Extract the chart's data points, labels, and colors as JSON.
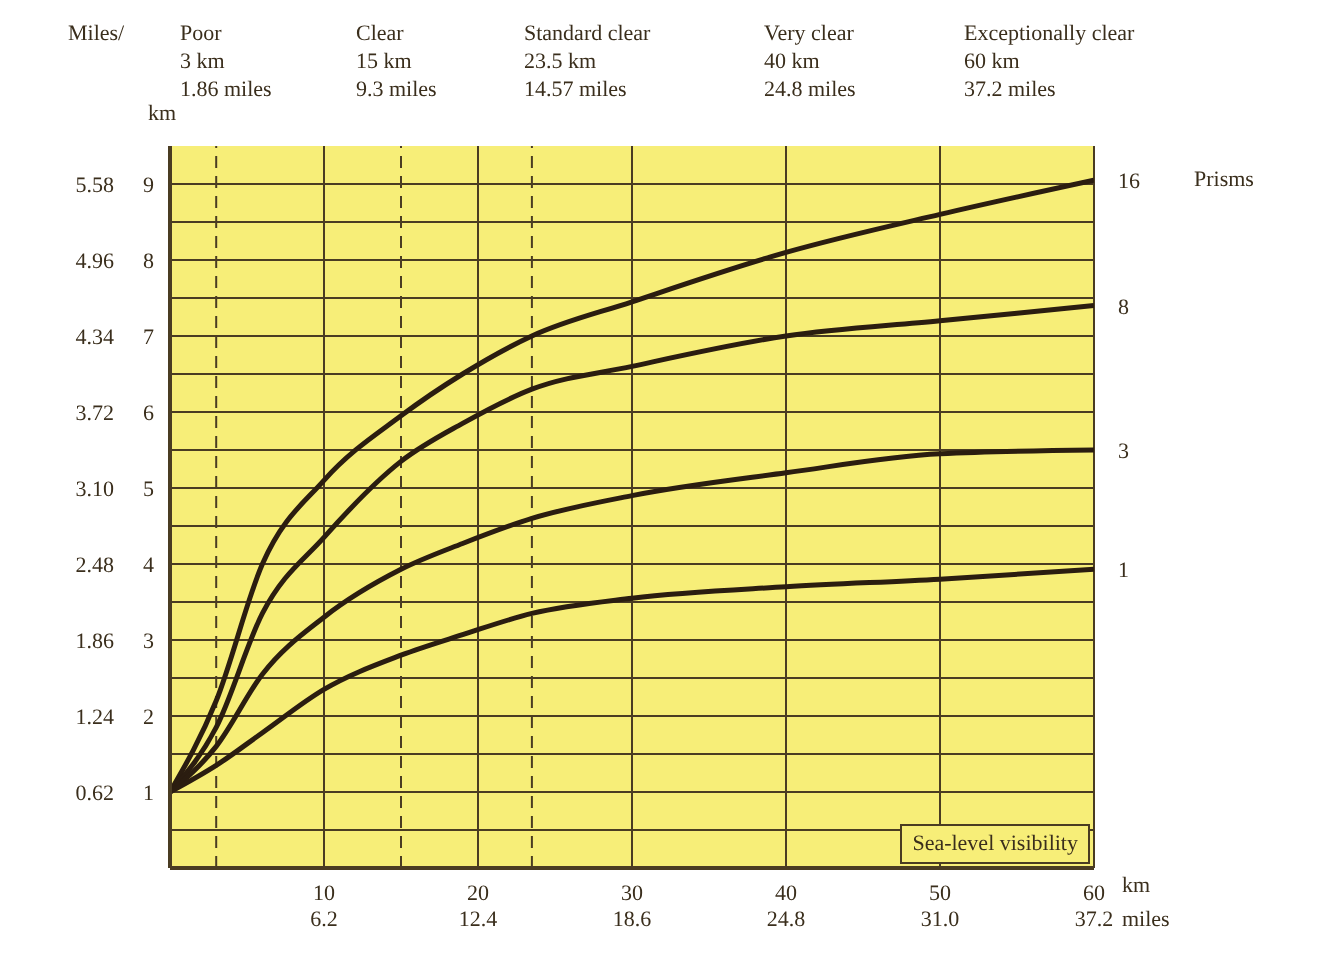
{
  "chart_data": {
    "type": "line",
    "x": [
      0,
      3,
      6,
      10,
      15,
      19,
      23.5,
      30,
      40,
      50,
      60
    ],
    "series": [
      {
        "name": "16",
        "color": "#2b1d10",
        "values": [
          1,
          2.2,
          4.0,
          5.1,
          5.95,
          6.5,
          7.0,
          7.45,
          8.1,
          8.6,
          9.05
        ]
      },
      {
        "name": "8",
        "color": "#2b1d10",
        "values": [
          1,
          1.85,
          3.35,
          4.35,
          5.35,
          5.85,
          6.3,
          6.6,
          7.0,
          7.2,
          7.4
        ]
      },
      {
        "name": "3",
        "color": "#2b1d10",
        "values": [
          1,
          1.6,
          2.55,
          3.3,
          3.93,
          4.27,
          4.6,
          4.9,
          5.2,
          5.45,
          5.5
        ]
      },
      {
        "name": "1",
        "color": "#2b1d10",
        "values": [
          1,
          1.35,
          1.78,
          2.35,
          2.8,
          3.07,
          3.35,
          3.55,
          3.7,
          3.8,
          3.93
        ]
      }
    ],
    "legend_title": "Prisms",
    "legend": false,
    "xlabel": "km",
    "x2label": "miles",
    "ylabel": "km",
    "y2label": "Miles/",
    "xlim": [
      0,
      60
    ],
    "xticks": [
      10,
      20,
      30,
      40,
      50,
      60
    ],
    "x2lim": [
      0,
      37.2
    ],
    "x2ticks": [
      6.2,
      12.4,
      18.6,
      24.8,
      {
        "value": 31,
        "label": "31.0"
      },
      37.2
    ],
    "ylim": [
      0,
      9.5
    ],
    "yticks": [
      {
        "value": 0.5,
        "label": null
      },
      1,
      {
        "value": 1.5,
        "label": null
      },
      2,
      {
        "value": 2.5,
        "label": null
      },
      3,
      {
        "value": 3.5,
        "label": null
      },
      4,
      {
        "value": 4.5,
        "label": null
      },
      5,
      {
        "value": 5.5,
        "label": null
      },
      6,
      {
        "value": 6.5,
        "label": null
      },
      7,
      {
        "value": 7.5,
        "label": null
      },
      8,
      {
        "value": 8.5,
        "label": null
      },
      9
    ],
    "y2lim": [
      0,
      5.89
    ],
    "y2ticks": [
      0.62,
      1.24,
      1.86,
      2.48,
      {
        "value": 3.1,
        "label": "3.10"
      },
      3.72,
      4.34,
      4.96,
      5.58
    ],
    "grid": true,
    "marker": "none",
    "line_style": "solid",
    "ref_lines": [
      {
        "axis": "x",
        "value": 3,
        "line_style": "dashed"
      },
      {
        "axis": "x",
        "value": 15,
        "line_style": "dashed"
      },
      {
        "axis": "x",
        "value": 23.5,
        "line_style": "dashed"
      }
    ],
    "annotations": [
      "Poor\n3 km\n1.86 miles",
      "Clear\n15 km\n9.3 miles",
      "Standard clear\n23.5 km\n14.57 miles",
      "Very clear\n40 km\n24.8 miles",
      "Exceptionally clear\n60 km\n37.2 miles",
      "Sea-level visibility"
    ]
  }
}
